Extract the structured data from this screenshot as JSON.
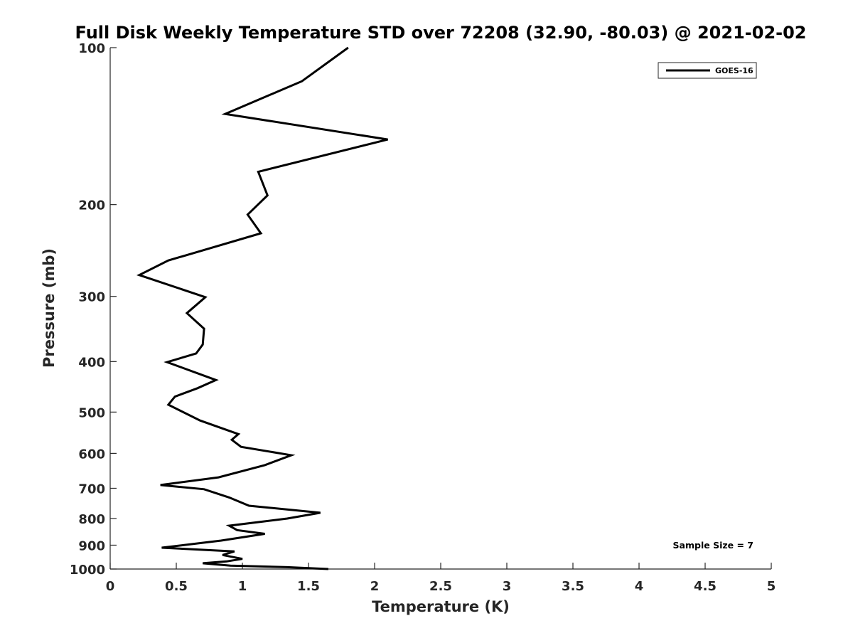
{
  "chart_data": {
    "type": "line",
    "title": "Full Disk Weekly Temperature STD over 72208 (32.90, -80.03) @ 2021-02-02",
    "xlabel": "Temperature (K)",
    "ylabel": "Pressure (mb)",
    "xlim": [
      0,
      5
    ],
    "ylim": [
      100,
      1000
    ],
    "y_scale": "log",
    "y_reversed": true,
    "grid": false,
    "legend_position": "top-right",
    "x_ticks": [
      "0",
      "0.5",
      "1",
      "1.5",
      "2",
      "2.5",
      "3",
      "3.5",
      "4",
      "4.5",
      "5"
    ],
    "y_ticks": [
      "100",
      "200",
      "300",
      "400",
      "500",
      "600",
      "700",
      "800",
      "900",
      "1000"
    ],
    "annotation": "Sample Size = 7",
    "series": [
      {
        "name": "GOES-16",
        "color": "#000000",
        "points": [
          [
            1.8,
            100
          ],
          [
            1.45,
            116
          ],
          [
            0.87,
            134
          ],
          [
            2.1,
            150
          ],
          [
            1.12,
            173
          ],
          [
            1.19,
            192
          ],
          [
            1.04,
            209
          ],
          [
            1.14,
            227
          ],
          [
            0.44,
            256
          ],
          [
            0.22,
            273
          ],
          [
            0.72,
            301
          ],
          [
            0.58,
            323
          ],
          [
            0.71,
            346
          ],
          [
            0.7,
            371
          ],
          [
            0.65,
            386
          ],
          [
            0.43,
            401
          ],
          [
            0.8,
            434
          ],
          [
            0.66,
            450
          ],
          [
            0.49,
            467
          ],
          [
            0.44,
            484
          ],
          [
            0.68,
            519
          ],
          [
            0.97,
            551
          ],
          [
            0.92,
            565
          ],
          [
            0.99,
            583
          ],
          [
            1.37,
            605
          ],
          [
            1.17,
            632
          ],
          [
            0.82,
            667
          ],
          [
            0.38,
            690
          ],
          [
            0.71,
            703
          ],
          [
            0.9,
            729
          ],
          [
            1.05,
            756
          ],
          [
            1.59,
            780
          ],
          [
            1.34,
            800
          ],
          [
            0.9,
            826
          ],
          [
            0.96,
            842
          ],
          [
            1.17,
            856
          ],
          [
            0.84,
            882
          ],
          [
            0.39,
            910
          ],
          [
            0.94,
            925
          ],
          [
            0.85,
            940
          ],
          [
            1.0,
            956
          ],
          [
            0.88,
            967
          ],
          [
            0.7,
            975
          ],
          [
            0.91,
            985
          ],
          [
            1.34,
            992
          ],
          [
            1.65,
            1000
          ]
        ]
      }
    ]
  }
}
